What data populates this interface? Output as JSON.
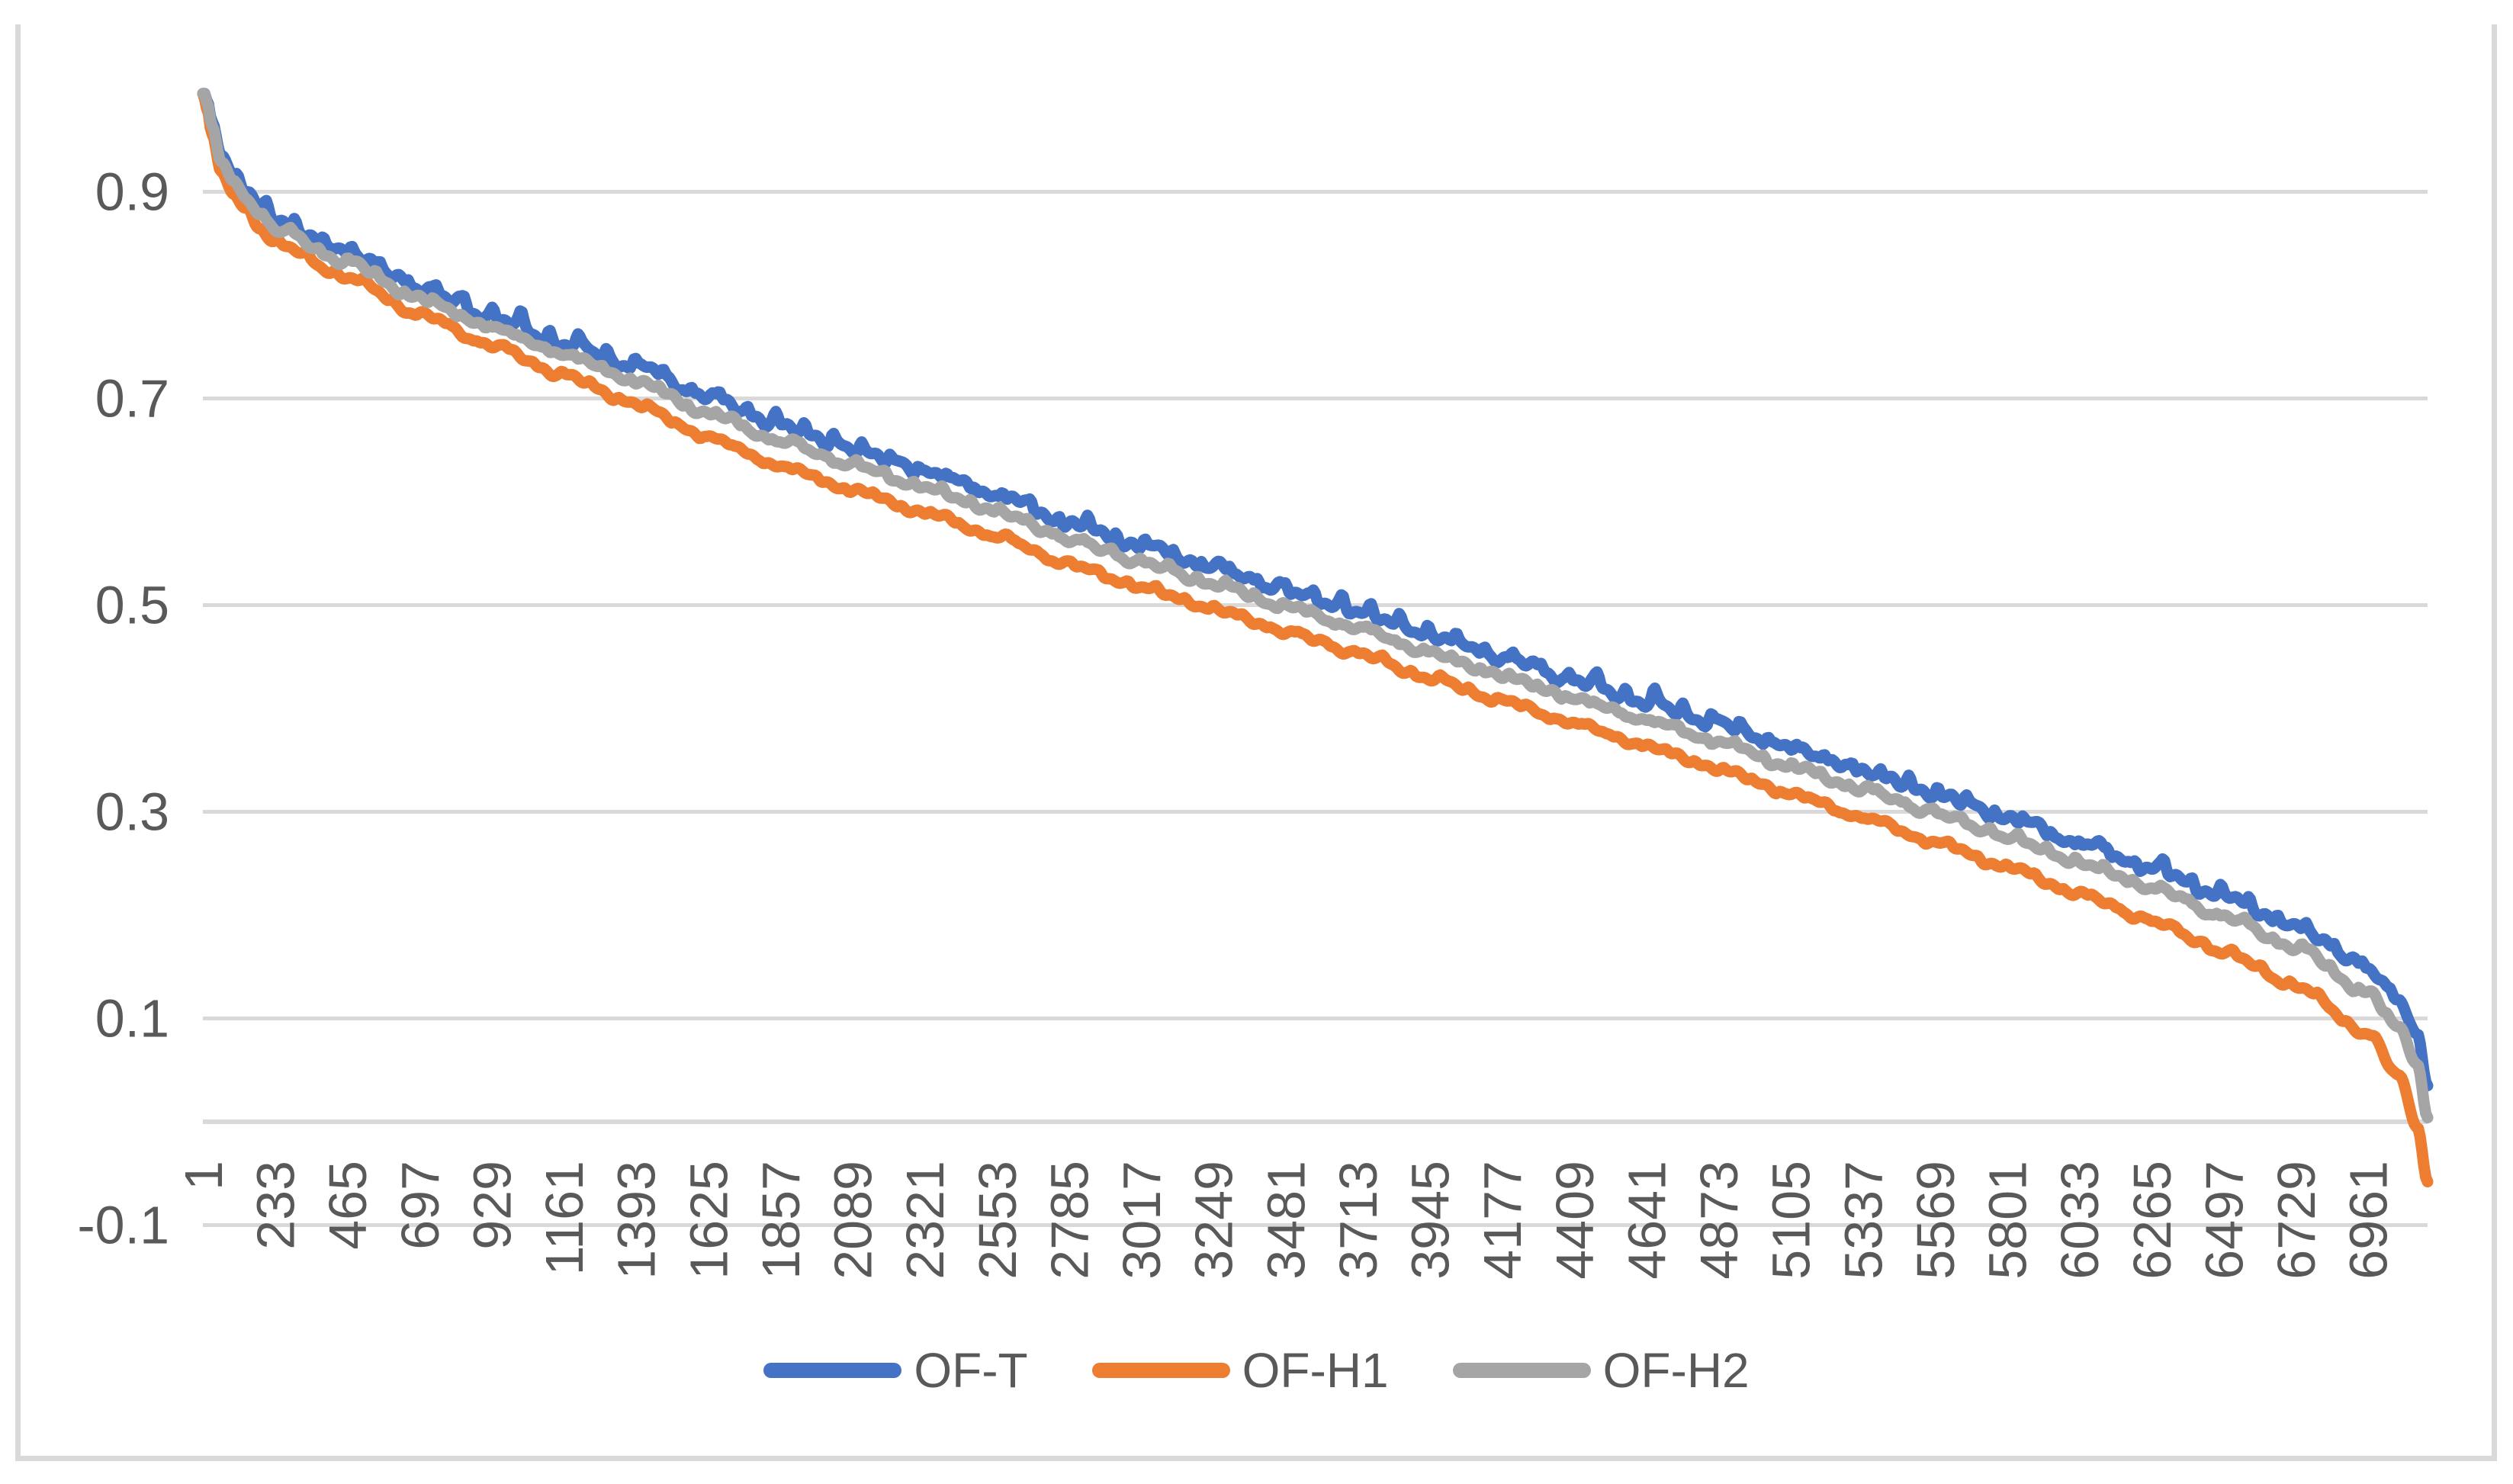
{
  "chart_data": {
    "type": "line",
    "title": "",
    "xlabel": "",
    "ylabel": "",
    "grid": true,
    "legend_position": "bottom",
    "x_axis": {
      "first_category": 1,
      "last_category": 7153,
      "tick_step": 232,
      "tick_labels": [
        "1",
        "233",
        "465",
        "697",
        "929",
        "1161",
        "1393",
        "1625",
        "1857",
        "2089",
        "2321",
        "2553",
        "2785",
        "3017",
        "3249",
        "3481",
        "3713",
        "3945",
        "4177",
        "4409",
        "4641",
        "4873",
        "5105",
        "5337",
        "5569",
        "5801",
        "6033",
        "6265",
        "6497",
        "6729",
        "6961"
      ]
    },
    "y_axis": {
      "min": -0.1,
      "max": 1.0,
      "tick_labels": [
        "-0.1",
        "0.1",
        "0.3",
        "0.5",
        "0.7",
        "0.9"
      ],
      "tick_values": [
        -0.1,
        0.1,
        0.3,
        0.5,
        0.7,
        0.9
      ],
      "zero_axis_line": true
    },
    "legend": [
      "OF-T",
      "OF-H1",
      "OF-H2"
    ],
    "series": [
      {
        "name": "OF-T",
        "color": "#4472C4",
        "points": [
          [
            1,
            1.0
          ],
          [
            15,
            0.988
          ],
          [
            30,
            0.968
          ],
          [
            60,
            0.935
          ],
          [
            100,
            0.916
          ],
          [
            140,
            0.901
          ],
          [
            185,
            0.884
          ],
          [
            233,
            0.87
          ],
          [
            465,
            0.84
          ],
          [
            697,
            0.806
          ],
          [
            929,
            0.778
          ],
          [
            1161,
            0.752
          ],
          [
            1393,
            0.73
          ],
          [
            1625,
            0.7
          ],
          [
            1857,
            0.673
          ],
          [
            2089,
            0.65
          ],
          [
            2321,
            0.628
          ],
          [
            2553,
            0.605
          ],
          [
            2785,
            0.578
          ],
          [
            3017,
            0.556
          ],
          [
            3249,
            0.535
          ],
          [
            3481,
            0.513
          ],
          [
            3713,
            0.493
          ],
          [
            3945,
            0.47
          ],
          [
            4177,
            0.448
          ],
          [
            4409,
            0.426
          ],
          [
            4641,
            0.405
          ],
          [
            4873,
            0.384
          ],
          [
            5105,
            0.36
          ],
          [
            5337,
            0.338
          ],
          [
            5569,
            0.316
          ],
          [
            5801,
            0.293
          ],
          [
            6033,
            0.268
          ],
          [
            6265,
            0.244
          ],
          [
            6497,
            0.217
          ],
          [
            6729,
            0.187
          ],
          [
            6961,
            0.148
          ],
          [
            7060,
            0.118
          ],
          [
            7120,
            0.082
          ],
          [
            7153,
            0.035
          ]
        ]
      },
      {
        "name": "OF-H1",
        "color": "#ED7D31",
        "points": [
          [
            1,
            0.996
          ],
          [
            15,
            0.98
          ],
          [
            30,
            0.956
          ],
          [
            60,
            0.919
          ],
          [
            100,
            0.898
          ],
          [
            140,
            0.882
          ],
          [
            185,
            0.864
          ],
          [
            233,
            0.85
          ],
          [
            465,
            0.817
          ],
          [
            697,
            0.781
          ],
          [
            929,
            0.751
          ],
          [
            1161,
            0.722
          ],
          [
            1393,
            0.694
          ],
          [
            1625,
            0.662
          ],
          [
            1857,
            0.634
          ],
          [
            2089,
            0.611
          ],
          [
            2321,
            0.589
          ],
          [
            2553,
            0.566
          ],
          [
            2785,
            0.539
          ],
          [
            3017,
            0.517
          ],
          [
            3249,
            0.496
          ],
          [
            3481,
            0.474
          ],
          [
            3713,
            0.453
          ],
          [
            3945,
            0.429
          ],
          [
            4177,
            0.407
          ],
          [
            4409,
            0.385
          ],
          [
            4641,
            0.363
          ],
          [
            4873,
            0.341
          ],
          [
            5105,
            0.317
          ],
          [
            5337,
            0.294
          ],
          [
            5569,
            0.27
          ],
          [
            5801,
            0.246
          ],
          [
            6033,
            0.22
          ],
          [
            6265,
            0.194
          ],
          [
            6497,
            0.164
          ],
          [
            6729,
            0.131
          ],
          [
            6961,
            0.085
          ],
          [
            7060,
            0.045
          ],
          [
            7120,
            -0.005
          ],
          [
            7153,
            -0.058
          ]
        ]
      },
      {
        "name": "OF-H2",
        "color": "#A5A5A5",
        "points": [
          [
            1,
            1.0
          ],
          [
            15,
            0.986
          ],
          [
            30,
            0.964
          ],
          [
            60,
            0.929
          ],
          [
            100,
            0.909
          ],
          [
            140,
            0.894
          ],
          [
            185,
            0.877
          ],
          [
            233,
            0.863
          ],
          [
            465,
            0.831
          ],
          [
            697,
            0.796
          ],
          [
            929,
            0.768
          ],
          [
            1161,
            0.742
          ],
          [
            1393,
            0.716
          ],
          [
            1625,
            0.685
          ],
          [
            1857,
            0.658
          ],
          [
            2089,
            0.635
          ],
          [
            2321,
            0.613
          ],
          [
            2553,
            0.59
          ],
          [
            2785,
            0.563
          ],
          [
            3017,
            0.541
          ],
          [
            3249,
            0.52
          ],
          [
            3481,
            0.498
          ],
          [
            3713,
            0.477
          ],
          [
            3945,
            0.453
          ],
          [
            4177,
            0.431
          ],
          [
            4409,
            0.409
          ],
          [
            4641,
            0.388
          ],
          [
            4873,
            0.367
          ],
          [
            5105,
            0.343
          ],
          [
            5337,
            0.321
          ],
          [
            5569,
            0.298
          ],
          [
            5801,
            0.275
          ],
          [
            6033,
            0.25
          ],
          [
            6265,
            0.226
          ],
          [
            6497,
            0.198
          ],
          [
            6729,
            0.168
          ],
          [
            6961,
            0.124
          ],
          [
            7060,
            0.092
          ],
          [
            7120,
            0.055
          ],
          [
            7153,
            0.004
          ]
        ]
      }
    ]
  },
  "colors": {
    "gridline": "#d9d9d9",
    "axis_line": "#d9d9d9",
    "tick_label": "#595959",
    "frame_border": "#d9d9d9",
    "background": "#ffffff",
    "series_blue": "#4472C4",
    "series_orange": "#ED7D31",
    "series_gray": "#A5A5A5"
  },
  "legend_items": {
    "item1": "OF-T",
    "item2": "OF-H1",
    "item3": "OF-H2"
  }
}
